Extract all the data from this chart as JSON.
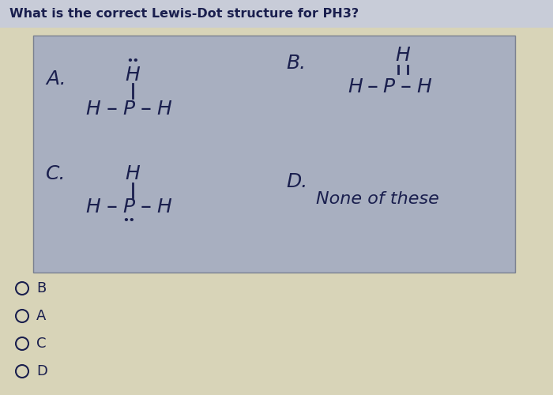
{
  "title": "What is the correct Lewis-Dot structure for PH3?",
  "box_bg": "#a8afc0",
  "page_bg": "#d8d4b8",
  "title_bar_bg": "#c8ccd8",
  "text_color": "#1a1f4e",
  "radio_labels": [
    "B",
    "A",
    "C",
    "D"
  ],
  "font_color": "#1a1f4e"
}
